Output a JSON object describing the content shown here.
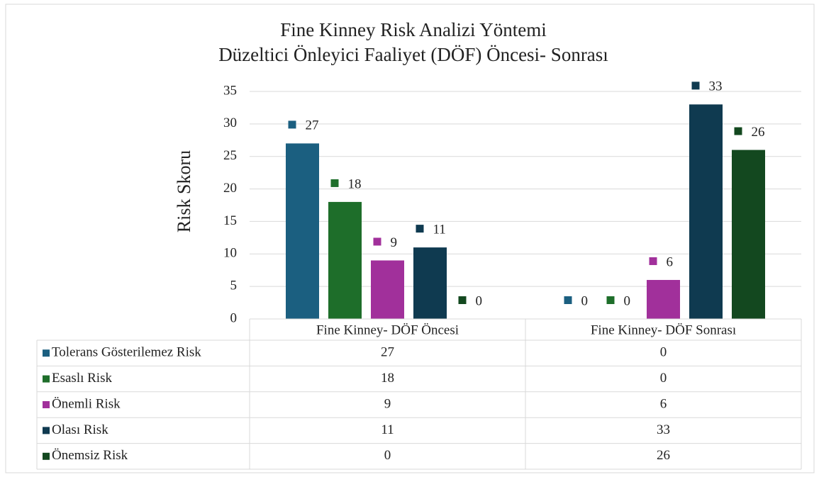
{
  "chart_data": {
    "type": "bar",
    "title": "Fine Kinney Risk Analizi Yöntemi",
    "subtitle": "Düzeltici Önleyici Faaliyet (DÖF) Öncesi- Sonrası",
    "y_label": "Risk Skoru",
    "categories": [
      "Fine Kinney- DÖF Öncesi",
      "Fine Kinney- DÖF Sonrası"
    ],
    "series": [
      {
        "name": "Tolerans Gösterilemez Risk",
        "color": "#1b5f80",
        "values": [
          27,
          0
        ]
      },
      {
        "name": "Esaslı Risk",
        "color": "#1e6e2a",
        "values": [
          18,
          0
        ]
      },
      {
        "name": "Önemli Risk",
        "color": "#a1309b",
        "values": [
          9,
          6
        ]
      },
      {
        "name": "Olası Risk",
        "color": "#0f3a50",
        "values": [
          11,
          33
        ]
      },
      {
        "name": "Önemsiz Risk",
        "color": "#13481f",
        "values": [
          0,
          26
        ]
      }
    ],
    "ylim": [
      0,
      35
    ],
    "yticks": [
      0,
      5,
      10,
      15,
      20,
      25,
      30,
      35
    ],
    "grid": true,
    "data_table": true
  }
}
